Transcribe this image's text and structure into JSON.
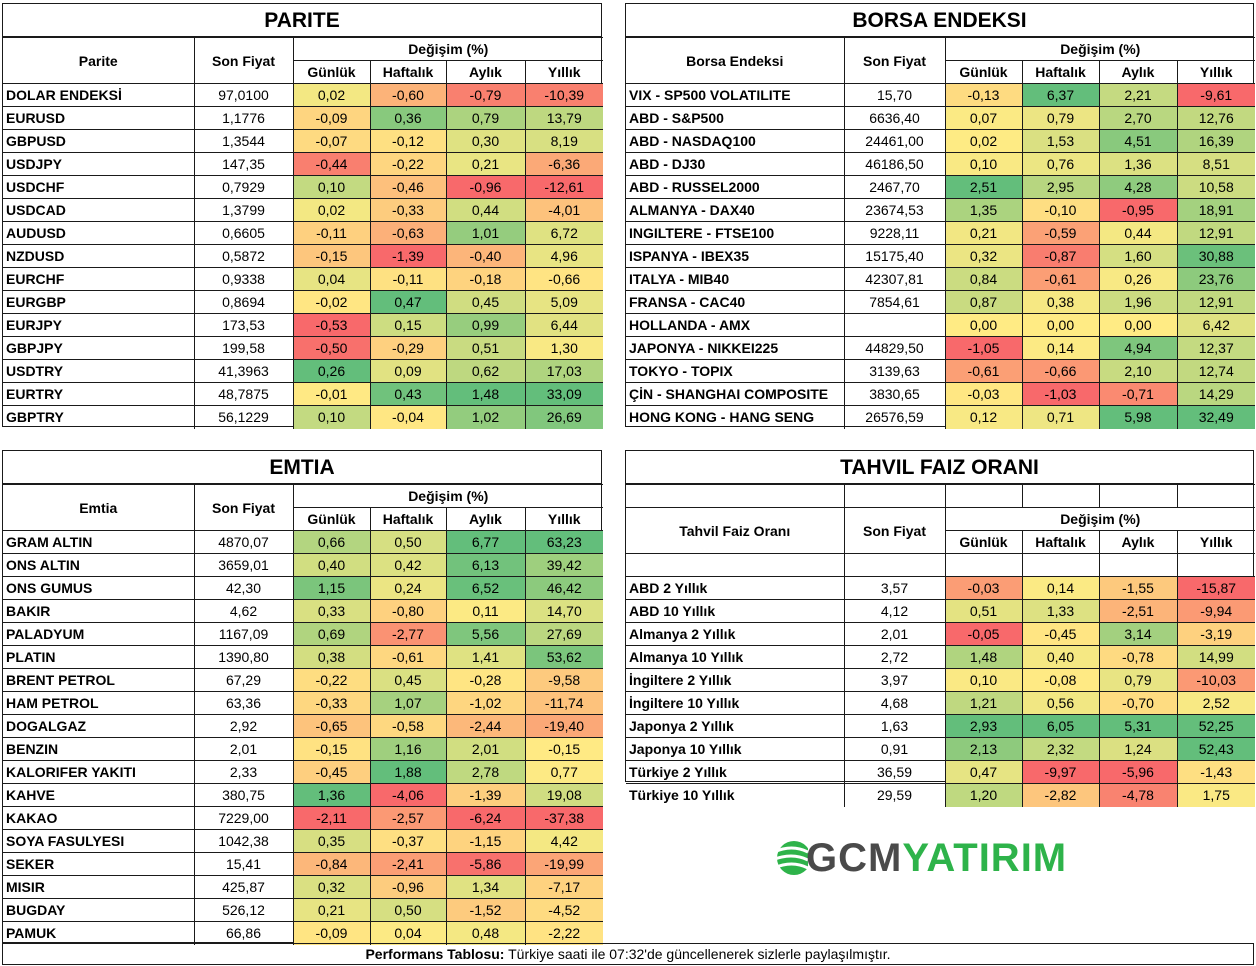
{
  "colors": {
    "red": "#f8696b",
    "yellow": "#ffeb84",
    "green": "#63be7b"
  },
  "parite": {
    "title": "PARITE",
    "headers": {
      "name": "Parite",
      "price": "Son Fiyat",
      "change": "Değişim (%)",
      "daily": "Günlük",
      "weekly": "Haftalık",
      "monthly": "Aylık",
      "yearly": "Yıllık"
    },
    "rows": [
      {
        "name": "DOLAR ENDEKSİ",
        "price": "97,0100",
        "values": [
          "0,02",
          "-0,60",
          "-0,79",
          "-10,39"
        ]
      },
      {
        "name": "EURUSD",
        "price": "1,1776",
        "values": [
          "-0,09",
          "0,36",
          "0,79",
          "13,79"
        ]
      },
      {
        "name": "GBPUSD",
        "price": "1,3544",
        "values": [
          "-0,07",
          "-0,12",
          "0,30",
          "8,19"
        ]
      },
      {
        "name": "USDJPY",
        "price": "147,35",
        "values": [
          "-0,44",
          "-0,22",
          "0,21",
          "-6,36"
        ]
      },
      {
        "name": "USDCHF",
        "price": "0,7929",
        "values": [
          "0,10",
          "-0,46",
          "-0,96",
          "-12,61"
        ]
      },
      {
        "name": "USDCAD",
        "price": "1,3799",
        "values": [
          "0,02",
          "-0,33",
          "0,44",
          "-4,01"
        ]
      },
      {
        "name": "AUDUSD",
        "price": "0,6605",
        "values": [
          "-0,11",
          "-0,63",
          "1,01",
          "6,72"
        ]
      },
      {
        "name": "NZDUSD",
        "price": "0,5872",
        "values": [
          "-0,15",
          "-1,39",
          "-0,40",
          "4,96"
        ]
      },
      {
        "name": "EURCHF",
        "price": "0,9338",
        "values": [
          "0,04",
          "-0,11",
          "-0,18",
          "-0,66"
        ]
      },
      {
        "name": "EURGBP",
        "price": "0,8694",
        "values": [
          "-0,02",
          "0,47",
          "0,45",
          "5,09"
        ]
      },
      {
        "name": "EURJPY",
        "price": "173,53",
        "values": [
          "-0,53",
          "0,15",
          "0,99",
          "6,44"
        ]
      },
      {
        "name": "GBPJPY",
        "price": "199,58",
        "values": [
          "-0,50",
          "-0,29",
          "0,51",
          "1,30"
        ]
      },
      {
        "name": "USDTRY",
        "price": "41,3963",
        "values": [
          "0,26",
          "0,09",
          "0,62",
          "17,03"
        ]
      },
      {
        "name": "EURTRY",
        "price": "48,7875",
        "values": [
          "-0,01",
          "0,43",
          "1,48",
          "33,09"
        ]
      },
      {
        "name": "GBPTRY",
        "price": "56,1229",
        "values": [
          "0,10",
          "-0,04",
          "1,02",
          "26,69"
        ]
      }
    ]
  },
  "borsa": {
    "title": "BORSA ENDEKSI",
    "headers": {
      "name": "Borsa Endeksi",
      "price": "Son Fiyat",
      "change": "Değişim (%)",
      "daily": "Günlük",
      "weekly": "Haftalık",
      "monthly": "Aylık",
      "yearly": "Yıllık"
    },
    "rows": [
      {
        "name": "VIX - SP500 VOLATILITE",
        "price": "15,70",
        "values": [
          "-0,13",
          "6,37",
          "2,21",
          "-9,61"
        ]
      },
      {
        "name": "ABD - S&P500",
        "price": "6636,40",
        "values": [
          "0,07",
          "0,79",
          "2,70",
          "12,76"
        ]
      },
      {
        "name": "ABD - NASDAQ100",
        "price": "24461,00",
        "values": [
          "0,02",
          "1,53",
          "4,51",
          "16,39"
        ]
      },
      {
        "name": "ABD - DJ30",
        "price": "46186,50",
        "values": [
          "0,10",
          "0,76",
          "1,36",
          "8,51"
        ]
      },
      {
        "name": "ABD - RUSSEL2000",
        "price": "2467,70",
        "values": [
          "2,51",
          "2,95",
          "4,28",
          "10,58"
        ]
      },
      {
        "name": "ALMANYA - DAX40",
        "price": "23674,53",
        "values": [
          "1,35",
          "-0,10",
          "-0,95",
          "18,91"
        ]
      },
      {
        "name": "INGILTERE - FTSE100",
        "price": "9228,11",
        "values": [
          "0,21",
          "-0,59",
          "0,44",
          "12,91"
        ]
      },
      {
        "name": "ISPANYA - IBEX35",
        "price": "15175,40",
        "values": [
          "0,32",
          "-0,87",
          "1,60",
          "30,88"
        ]
      },
      {
        "name": "ITALYA - MIB40",
        "price": "42307,81",
        "values": [
          "0,84",
          "-0,61",
          "0,26",
          "23,76"
        ]
      },
      {
        "name": "FRANSA - CAC40",
        "price": "7854,61",
        "values": [
          "0,87",
          "0,38",
          "1,96",
          "12,91"
        ]
      },
      {
        "name": "HOLLANDA - AMX",
        "price": "",
        "values": [
          "0,00",
          "0,00",
          "0,00",
          "6,42"
        ]
      },
      {
        "name": "JAPONYA - NIKKEI225",
        "price": "44829,50",
        "values": [
          "-1,05",
          "0,14",
          "4,94",
          "12,37"
        ]
      },
      {
        "name": "TOKYO - TOPIX",
        "price": "3139,63",
        "values": [
          "-0,61",
          "-0,66",
          "2,10",
          "12,74"
        ]
      },
      {
        "name": "ÇİN - SHANGHAI COMPOSITE",
        "price": "3830,65",
        "values": [
          "-0,03",
          "-1,03",
          "-0,71",
          "14,29"
        ]
      },
      {
        "name": "HONG KONG - HANG SENG",
        "price": "26576,59",
        "values": [
          "0,12",
          "0,71",
          "5,98",
          "32,49"
        ]
      }
    ]
  },
  "emtia": {
    "title": "EMTIA",
    "headers": {
      "name": "Emtia",
      "price": "Son Fiyat",
      "change": "Değişim (%)",
      "daily": "Günlük",
      "weekly": "Haftalık",
      "monthly": "Aylık",
      "yearly": "Yıllık"
    },
    "rows": [
      {
        "name": "GRAM ALTIN",
        "price": "4870,07",
        "values": [
          "0,66",
          "0,50",
          "6,77",
          "63,23"
        ]
      },
      {
        "name": "ONS ALTIN",
        "price": "3659,01",
        "values": [
          "0,40",
          "0,42",
          "6,13",
          "39,42"
        ]
      },
      {
        "name": "ONS GUMUS",
        "price": "42,30",
        "values": [
          "1,15",
          "0,24",
          "6,52",
          "46,42"
        ]
      },
      {
        "name": "BAKIR",
        "price": "4,62",
        "values": [
          "0,33",
          "-0,80",
          "0,11",
          "14,70"
        ]
      },
      {
        "name": "PALADYUM",
        "price": "1167,09",
        "values": [
          "0,69",
          "-2,77",
          "5,56",
          "27,69"
        ]
      },
      {
        "name": "PLATIN",
        "price": "1390,80",
        "values": [
          "0,38",
          "-0,61",
          "1,41",
          "53,62"
        ]
      },
      {
        "name": "BRENT PETROL",
        "price": "67,29",
        "values": [
          "-0,22",
          "0,45",
          "-0,28",
          "-9,58"
        ]
      },
      {
        "name": "HAM PETROL",
        "price": "63,36",
        "values": [
          "-0,33",
          "1,07",
          "-1,02",
          "-11,74"
        ]
      },
      {
        "name": "DOGALGAZ",
        "price": "2,92",
        "values": [
          "-0,65",
          "-0,58",
          "-2,44",
          "-19,40"
        ]
      },
      {
        "name": "BENZIN",
        "price": "2,01",
        "values": [
          "-0,15",
          "1,16",
          "2,01",
          "-0,15"
        ]
      },
      {
        "name": "KALORIFER YAKITI",
        "price": "2,33",
        "values": [
          "-0,45",
          "1,88",
          "2,78",
          "0,77"
        ]
      },
      {
        "name": "KAHVE",
        "price": "380,75",
        "values": [
          "1,36",
          "-4,06",
          "-1,39",
          "19,08"
        ]
      },
      {
        "name": "KAKAO",
        "price": "7229,00",
        "values": [
          "-2,11",
          "-2,57",
          "-6,24",
          "-37,38"
        ]
      },
      {
        "name": "SOYA FASULYESI",
        "price": "1042,38",
        "values": [
          "0,35",
          "-0,37",
          "-1,15",
          "4,42"
        ]
      },
      {
        "name": "SEKER",
        "price": "15,41",
        "values": [
          "-0,84",
          "-2,41",
          "-5,86",
          "-19,99"
        ]
      },
      {
        "name": "MISIR",
        "price": "425,87",
        "values": [
          "0,32",
          "-0,96",
          "1,34",
          "-7,17"
        ]
      },
      {
        "name": "BUGDAY",
        "price": "526,12",
        "values": [
          "0,21",
          "0,50",
          "-1,52",
          "-4,52"
        ]
      },
      {
        "name": "PAMUK",
        "price": "66,86",
        "values": [
          "-0,09",
          "0,04",
          "0,48",
          "-2,22"
        ]
      }
    ]
  },
  "tahvil": {
    "title": "TAHVIL FAIZ ORANI",
    "headers": {
      "name": "Tahvil Faiz Oranı",
      "price": "Son Fiyat",
      "change": "Değişim (%)",
      "daily": "Günlük",
      "weekly": "Haftalık",
      "monthly": "Aylık",
      "yearly": "Yıllık"
    },
    "rows": [
      {
        "name": "ABD 2 Yıllık",
        "price": "3,57",
        "values": [
          "-0,03",
          "0,14",
          "-1,55",
          "-15,87"
        ]
      },
      {
        "name": "ABD 10 Yıllık",
        "price": "4,12",
        "values": [
          "0,51",
          "1,33",
          "-2,51",
          "-9,94"
        ]
      },
      {
        "name": "Almanya 2 Yıllık",
        "price": "2,01",
        "values": [
          "-0,05",
          "-0,45",
          "3,14",
          "-3,19"
        ]
      },
      {
        "name": "Almanya 10 Yıllık",
        "price": "2,72",
        "values": [
          "1,48",
          "0,40",
          "-0,78",
          "14,99"
        ]
      },
      {
        "name": "İngiltere 2 Yıllık",
        "price": "3,97",
        "values": [
          "0,10",
          "-0,08",
          "0,79",
          "-10,03"
        ]
      },
      {
        "name": "İngiltere 10 Yıllık",
        "price": "4,68",
        "values": [
          "1,21",
          "0,56",
          "-0,70",
          "2,52"
        ]
      },
      {
        "name": "Japonya 2 Yıllık",
        "price": "1,63",
        "values": [
          "2,93",
          "6,05",
          "5,31",
          "52,25"
        ]
      },
      {
        "name": "Japonya 10 Yıllık",
        "price": "0,91",
        "values": [
          "2,13",
          "2,32",
          "1,24",
          "52,43"
        ]
      },
      {
        "name": "Türkiye 2 Yıllık",
        "price": "36,59",
        "values": [
          "0,47",
          "-9,97",
          "-5,96",
          "-1,43"
        ]
      },
      {
        "name": "Türkiye 10 Yıllık",
        "price": "29,59",
        "values": [
          "1,20",
          "-2,82",
          "-4,78",
          "1,75"
        ]
      }
    ]
  },
  "footer": {
    "bold": "Performans Tablosu:",
    "text": " Türkiye saati ile 07:32'de güncellenerek sizlerle paylaşılmıştır."
  },
  "logo": {
    "part1": "GCM",
    "part2": "YATIRIM"
  }
}
